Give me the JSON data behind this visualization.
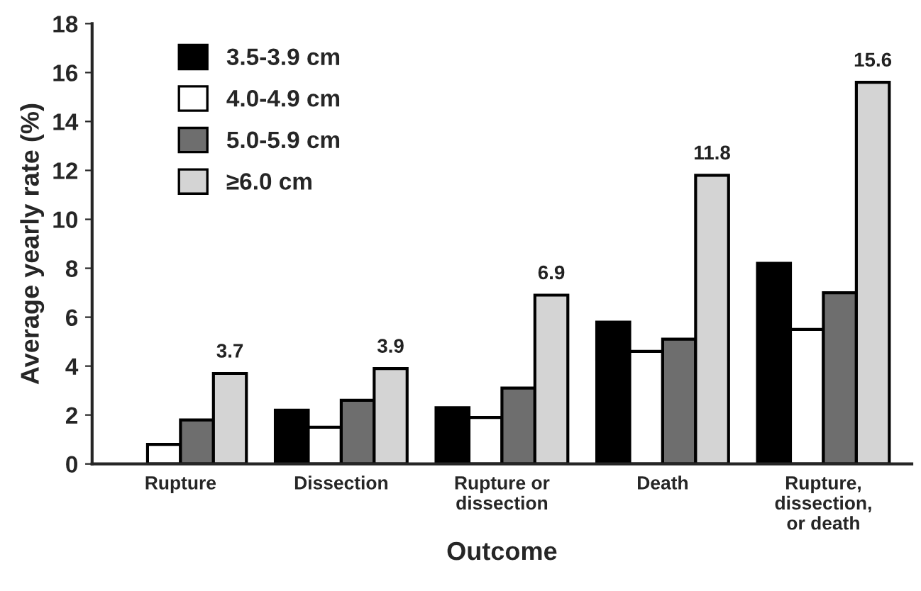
{
  "chart_data": {
    "type": "bar",
    "xlabel": "Outcome",
    "ylabel": "Average yearly rate (%)",
    "categories": [
      "Rupture",
      "Dissection",
      "Rupture or\ndissection",
      "Death",
      "Rupture,\ndissection,\nor death"
    ],
    "series": [
      {
        "name": "3.5-3.9 cm",
        "color": "#000000",
        "values": [
          null,
          2.2,
          2.3,
          5.8,
          8.2
        ]
      },
      {
        "name": "4.0-4.9 cm",
        "color": "#ffffff",
        "values": [
          0.8,
          1.5,
          1.9,
          4.6,
          5.5
        ]
      },
      {
        "name": "5.0-5.9 cm",
        "color": "#6e6e6e",
        "values": [
          1.8,
          2.6,
          3.1,
          5.1,
          7.0
        ]
      },
      {
        "name": "≥6.0 cm",
        "color": "#d4d4d4",
        "values": [
          3.7,
          3.9,
          6.9,
          11.8,
          15.6
        ],
        "value_labels": [
          "3.7",
          "3.9",
          "6.9",
          "11.8",
          "15.6"
        ]
      }
    ],
    "ylim": [
      0,
      18
    ],
    "yticks": [
      0,
      2,
      4,
      6,
      8,
      10,
      12,
      14,
      16,
      18
    ],
    "grid": false,
    "legend": "top left"
  }
}
